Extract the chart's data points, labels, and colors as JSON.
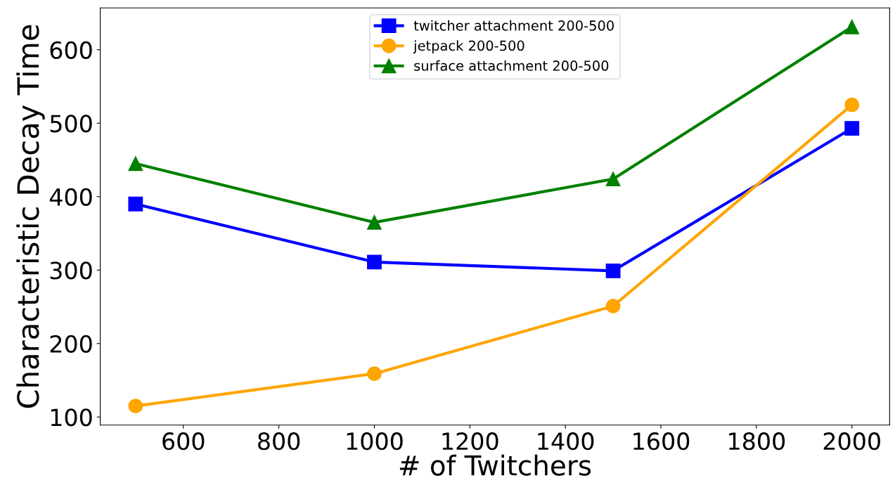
{
  "chart_data": {
    "type": "line",
    "xlabel": "# of Twitchers",
    "ylabel": "Characteristic Decay Time",
    "x": [
      500,
      1000,
      1500,
      2000
    ],
    "series": [
      {
        "name": "twitcher attachment 200-500",
        "color": "#0000ff",
        "marker": "square",
        "values": [
          390,
          311,
          299,
          493
        ]
      },
      {
        "name": "jetpack 200-500",
        "color": "#ffa500",
        "marker": "circle",
        "values": [
          115,
          159,
          251,
          525
        ]
      },
      {
        "name": "surface attachment 200-500",
        "color": "#008000",
        "marker": "triangle",
        "values": [
          445,
          365,
          424,
          631
        ]
      }
    ],
    "xlim": [
      426,
      2079
    ],
    "ylim": [
      89,
      657
    ],
    "xticks": [
      600,
      800,
      1000,
      1200,
      1400,
      1600,
      1800,
      2000
    ],
    "yticks": [
      100,
      200,
      300,
      400,
      500,
      600
    ],
    "grid": false,
    "legend": "top",
    "line_style": "solid"
  }
}
